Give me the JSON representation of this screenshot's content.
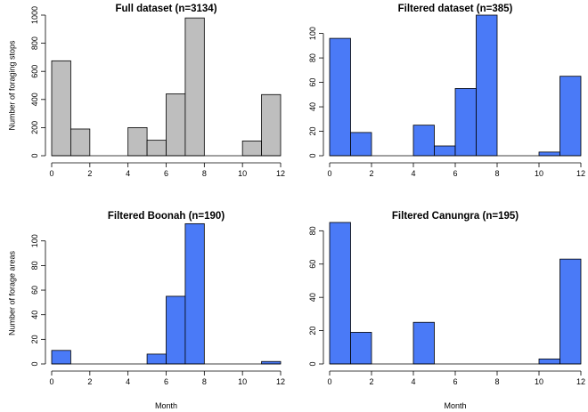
{
  "chart_data": [
    {
      "type": "bar",
      "title": "Full dataset (n=3134)",
      "xlabel": "",
      "ylabel": "Number of foraging stops",
      "fill": "#bebebe",
      "xlim": [
        0,
        12
      ],
      "ylim": [
        0,
        1000
      ],
      "xticks": [
        0,
        2,
        4,
        6,
        8,
        10,
        12
      ],
      "yticks": [
        0,
        200,
        400,
        600,
        800,
        1000
      ],
      "bins": [
        {
          "x0": 0,
          "x1": 1,
          "value": 675
        },
        {
          "x0": 1,
          "x1": 2,
          "value": 190
        },
        {
          "x0": 2,
          "x1": 3,
          "value": 0
        },
        {
          "x0": 3,
          "x1": 4,
          "value": 0
        },
        {
          "x0": 4,
          "x1": 5,
          "value": 200
        },
        {
          "x0": 5,
          "x1": 6,
          "value": 110
        },
        {
          "x0": 6,
          "x1": 7,
          "value": 440
        },
        {
          "x0": 7,
          "x1": 8,
          "value": 980
        },
        {
          "x0": 8,
          "x1": 9,
          "value": 0
        },
        {
          "x0": 9,
          "x1": 10,
          "value": 0
        },
        {
          "x0": 10,
          "x1": 11,
          "value": 105
        },
        {
          "x0": 11,
          "x1": 12,
          "value": 435
        }
      ]
    },
    {
      "type": "bar",
      "title": "Filtered dataset (n=385)",
      "xlabel": "",
      "ylabel": "",
      "fill": "#4a7af7",
      "xlim": [
        0,
        12
      ],
      "ylim": [
        0,
        115
      ],
      "xticks": [
        0,
        2,
        4,
        6,
        8,
        10,
        12
      ],
      "yticks": [
        0,
        20,
        40,
        60,
        80,
        100
      ],
      "bins": [
        {
          "x0": 0,
          "x1": 1,
          "value": 96
        },
        {
          "x0": 1,
          "x1": 2,
          "value": 19
        },
        {
          "x0": 2,
          "x1": 3,
          "value": 0
        },
        {
          "x0": 3,
          "x1": 4,
          "value": 0
        },
        {
          "x0": 4,
          "x1": 5,
          "value": 25
        },
        {
          "x0": 5,
          "x1": 6,
          "value": 8
        },
        {
          "x0": 6,
          "x1": 7,
          "value": 55
        },
        {
          "x0": 7,
          "x1": 8,
          "value": 115
        },
        {
          "x0": 8,
          "x1": 9,
          "value": 0
        },
        {
          "x0": 9,
          "x1": 10,
          "value": 0
        },
        {
          "x0": 10,
          "x1": 11,
          "value": 3
        },
        {
          "x0": 11,
          "x1": 12,
          "value": 65
        }
      ]
    },
    {
      "type": "bar",
      "title": "Filtered Boonah (n=190)",
      "xlabel": "Month",
      "ylabel": "Number of forage areas",
      "fill": "#4a7af7",
      "xlim": [
        0,
        12
      ],
      "ylim": [
        0,
        115
      ],
      "xticks": [
        0,
        2,
        4,
        6,
        8,
        10,
        12
      ],
      "yticks": [
        0,
        20,
        40,
        60,
        80,
        100
      ],
      "bins": [
        {
          "x0": 0,
          "x1": 1,
          "value": 11
        },
        {
          "x0": 1,
          "x1": 2,
          "value": 0
        },
        {
          "x0": 2,
          "x1": 3,
          "value": 0
        },
        {
          "x0": 3,
          "x1": 4,
          "value": 0
        },
        {
          "x0": 4,
          "x1": 5,
          "value": 0
        },
        {
          "x0": 5,
          "x1": 6,
          "value": 8
        },
        {
          "x0": 6,
          "x1": 7,
          "value": 55
        },
        {
          "x0": 7,
          "x1": 8,
          "value": 114
        },
        {
          "x0": 8,
          "x1": 9,
          "value": 0
        },
        {
          "x0": 9,
          "x1": 10,
          "value": 0
        },
        {
          "x0": 10,
          "x1": 11,
          "value": 0
        },
        {
          "x0": 11,
          "x1": 12,
          "value": 2
        }
      ]
    },
    {
      "type": "bar",
      "title": "Filtered Canungra (n=195)",
      "xlabel": "Month",
      "ylabel": "",
      "fill": "#4a7af7",
      "xlim": [
        0,
        12
      ],
      "ylim": [
        0,
        85
      ],
      "xticks": [
        0,
        2,
        4,
        6,
        8,
        10,
        12
      ],
      "yticks": [
        0,
        20,
        40,
        60,
        80
      ],
      "bins": [
        {
          "x0": 0,
          "x1": 1,
          "value": 85
        },
        {
          "x0": 1,
          "x1": 2,
          "value": 19
        },
        {
          "x0": 2,
          "x1": 3,
          "value": 0
        },
        {
          "x0": 3,
          "x1": 4,
          "value": 0
        },
        {
          "x0": 4,
          "x1": 5,
          "value": 25
        },
        {
          "x0": 5,
          "x1": 6,
          "value": 0
        },
        {
          "x0": 6,
          "x1": 7,
          "value": 0
        },
        {
          "x0": 7,
          "x1": 8,
          "value": 0
        },
        {
          "x0": 8,
          "x1": 9,
          "value": 0
        },
        {
          "x0": 9,
          "x1": 10,
          "value": 0
        },
        {
          "x0": 10,
          "x1": 11,
          "value": 3
        },
        {
          "x0": 11,
          "x1": 12,
          "value": 63
        }
      ]
    }
  ]
}
